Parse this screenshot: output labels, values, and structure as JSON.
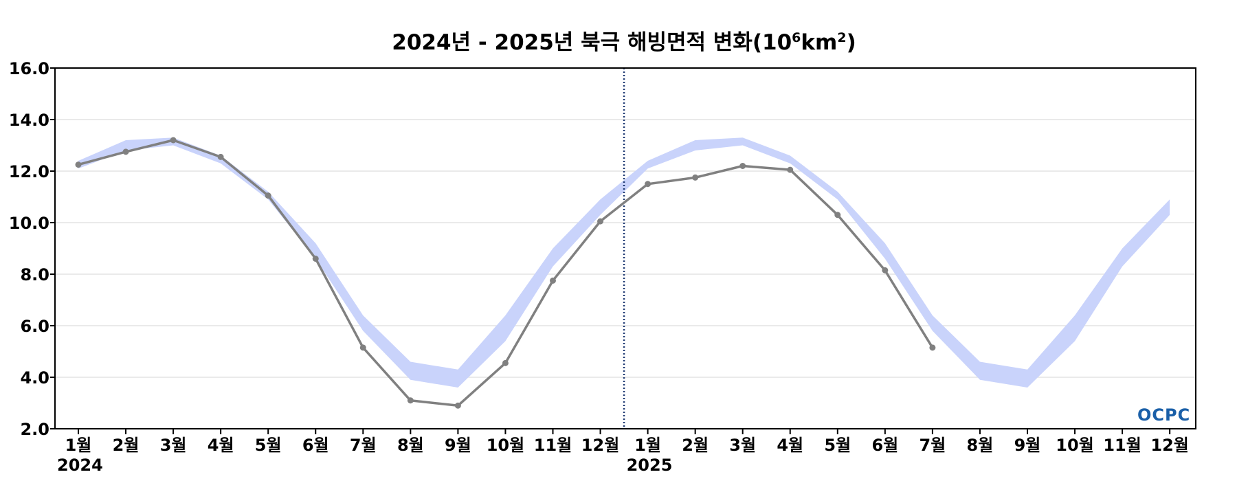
{
  "chart_data": {
    "type": "line",
    "title": "2024년 - 2025년 북극 해빙면적 변화(10",
    "title_exp": "6",
    "title_unit": "km",
    "title_unit_exp": "2",
    "title_close": ")",
    "ylim": [
      2.0,
      16.0
    ],
    "yticks": [
      "2.0",
      "4.0",
      "6.0",
      "8.0",
      "10.0",
      "12.0",
      "14.0",
      "16.0"
    ],
    "grid": true,
    "x_month_labels": [
      "1월",
      "2월",
      "3월",
      "4월",
      "5월",
      "6월",
      "7월",
      "8월",
      "9월",
      "10월",
      "11월",
      "12월",
      "1월",
      "2월",
      "3월",
      "4월",
      "5월",
      "6월",
      "7월",
      "8월",
      "9월",
      "10월",
      "11월",
      "12월"
    ],
    "year_labels": [
      {
        "text": "2024",
        "month_index": 0
      },
      {
        "text": "2025",
        "month_index": 12
      }
    ],
    "year_divider_after_index": 11.5,
    "band": {
      "color": "#c9d3fb",
      "upper": [
        12.4,
        13.2,
        13.3,
        12.6,
        11.2,
        9.2,
        6.4,
        4.6,
        4.3,
        6.4,
        9.0,
        10.9,
        12.4,
        13.2,
        13.3,
        12.6,
        11.2,
        9.2,
        6.4,
        4.6,
        4.3,
        6.4,
        9.0,
        10.9
      ],
      "lower": [
        12.1,
        12.8,
        13.0,
        12.3,
        10.9,
        8.6,
        5.8,
        3.9,
        3.6,
        5.4,
        8.3,
        10.3,
        12.1,
        12.8,
        13.0,
        12.3,
        10.9,
        8.6,
        5.8,
        3.9,
        3.6,
        5.4,
        8.3,
        10.3
      ]
    },
    "series": [
      {
        "color": "#808080",
        "values": [
          12.25,
          12.75,
          13.2,
          12.55,
          11.05,
          8.6,
          5.15,
          3.1,
          2.9,
          4.55,
          7.75,
          10.05,
          11.5,
          11.75,
          12.2,
          12.05,
          10.3,
          8.15,
          5.15
        ]
      }
    ]
  },
  "logo_text": "OCPC"
}
